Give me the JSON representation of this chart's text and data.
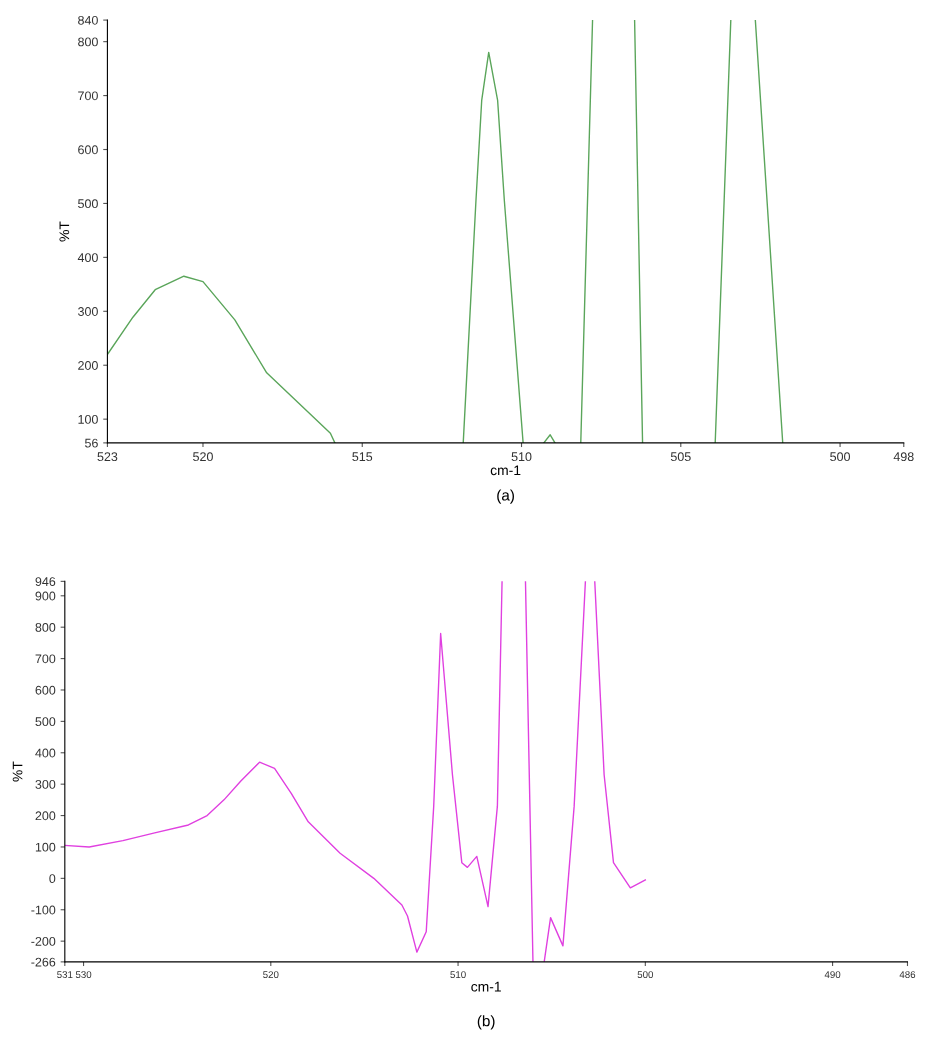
{
  "chart_data": [
    {
      "type": "line",
      "xlabel": "cm-1",
      "ylabel": "%T",
      "annotations": [
        "(a)"
      ],
      "xlim": [
        523,
        498
      ],
      "ylim": [
        56,
        840
      ],
      "xticks": [
        523,
        520,
        515,
        510,
        505,
        500,
        498
      ],
      "yticks": [
        56,
        100,
        200,
        300,
        400,
        500,
        600,
        700,
        800,
        840
      ],
      "grid": false,
      "series": [
        {
          "color": "#5aa55a",
          "x": [
            523,
            522.2,
            521.5,
            520.6,
            520,
            519,
            518,
            517,
            516,
            515.86,
            513.5,
            511.83,
            511.43,
            511.25,
            511.03,
            510.75,
            510.54,
            509.95,
            509.6,
            509.3,
            509.1,
            508.95,
            508.5,
            508.14,
            507.77,
            507,
            506.45,
            506.2,
            505,
            503.92,
            503.43,
            503,
            502.66,
            501.8
          ],
          "values": [
            220,
            289,
            340,
            365,
            355,
            284,
            186,
            130,
            74,
            56,
            null,
            56,
            506,
            691,
            780,
            691,
            506,
            56,
            null,
            56,
            71,
            56,
            null,
            56,
            840,
            null,
            840,
            56,
            null,
            56,
            840,
            null,
            840,
            56
          ]
        }
      ]
    },
    {
      "type": "line",
      "xlabel": "cm-1",
      "ylabel": "%T",
      "annotations": [
        "(b)"
      ],
      "xlim": [
        531,
        486
      ],
      "ylim": [
        -266,
        946
      ],
      "xticks": [
        531,
        530,
        520,
        510,
        500,
        490,
        486
      ],
      "yticks": [
        -266,
        -200,
        -100,
        0,
        100,
        200,
        300,
        400,
        500,
        600,
        700,
        800,
        900,
        946
      ],
      "grid": false,
      "series": [
        {
          "color": "#e040e0",
          "x": [
            531,
            529.7,
            527.9,
            526.2,
            524.4,
            523.4,
            522.5,
            521.6,
            520.6,
            519.8,
            518.9,
            518.0,
            516.3,
            514.5,
            513.0,
            512.7,
            512.2,
            511.7,
            511.3,
            510.93,
            510.3,
            509.8,
            509.5,
            509.0,
            508.4,
            507.9,
            507.65,
            507,
            506.4,
            506.0,
            505.7,
            505.4,
            505.06,
            504.4,
            503.8,
            503.2,
            503,
            502.7,
            502.2,
            501.7,
            500.8,
            500.0
          ],
          "values": [
            105,
            100,
            120,
            145,
            170,
            200,
            250,
            310,
            370,
            350,
            270,
            180,
            80,
            0,
            -85,
            -120,
            -235,
            -170,
            230,
            780,
            330,
            50,
            35,
            70,
            -90,
            230,
            946,
            null,
            946,
            -266,
            null,
            -266,
            -125,
            -215,
            230,
            946,
            null,
            946,
            330,
            50,
            -30,
            -5
          ]
        }
      ]
    }
  ]
}
